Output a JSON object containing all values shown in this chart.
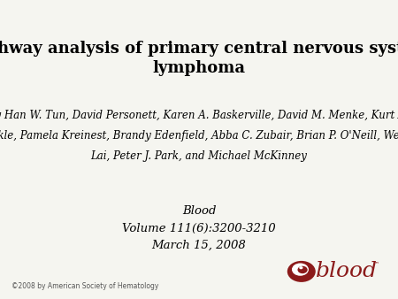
{
  "title": "Pathway analysis of primary central nervous system\nlymphoma",
  "authors_line1": "by Han W. Tun, David Personett, Karen A. Baskerville, David M. Menke, Kurt A.",
  "authors_line2": "Jaeckle, Pamela Kreinest, Brandy Edenfield, Abba C. Zubair, Brian P. O'Neill, Weil R.",
  "authors_line3": "Lai, Peter J. Park, and Michael McKinney",
  "journal_line1": "Blood",
  "journal_line2": "Volume 111(6):3200-3210",
  "journal_line3": "March 15, 2008",
  "copyright": "©2008 by American Society of Hematology",
  "blood_color": "#8B1A1A",
  "background_color": "#f5f5f0",
  "title_fontsize": 13,
  "authors_fontsize": 8.5,
  "journal_fontsize": 9.5,
  "copyright_fontsize": 5.5
}
